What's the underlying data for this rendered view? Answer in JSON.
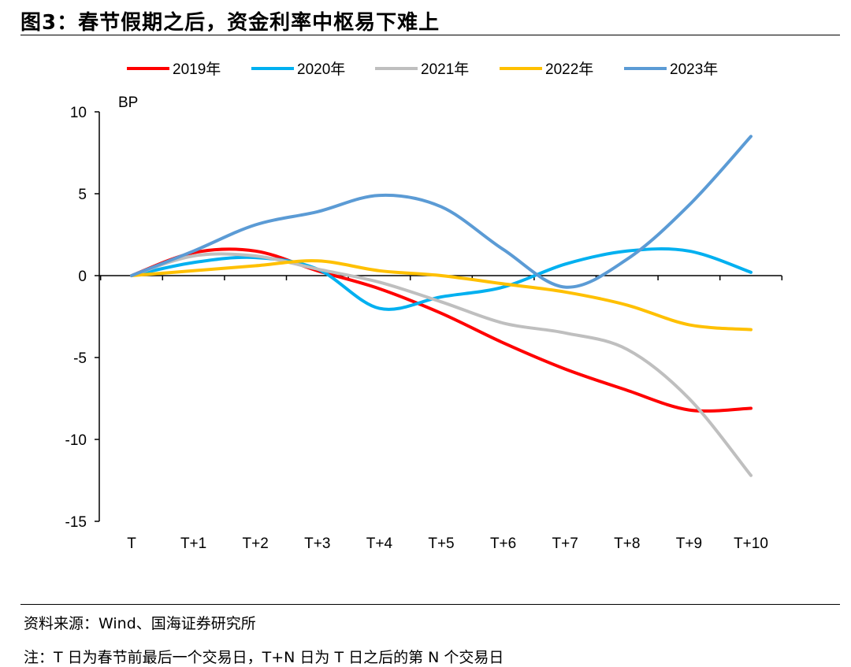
{
  "figure": {
    "title": "图3：春节假期之后，资金利率中枢易下难上",
    "source": "资料来源：Wind、国海证券研究所",
    "note": "注：T 日为春节前最后一个交易日，T+N 日为 T 日之后的第 N 个交易日"
  },
  "chart_data": {
    "type": "line",
    "ylabel": "BP",
    "ylim": [
      -15,
      10
    ],
    "yticks": [
      10,
      5,
      0,
      -5,
      -10,
      -15
    ],
    "categories": [
      "T",
      "T+1",
      "T+2",
      "T+3",
      "T+4",
      "T+5",
      "T+6",
      "T+7",
      "T+8",
      "T+9",
      "T+10"
    ],
    "legend_position": "top",
    "grid": false,
    "series": [
      {
        "name": "2019年",
        "color": "#ff0000",
        "values": [
          0,
          1.4,
          1.5,
          0.3,
          -0.8,
          -2.3,
          -4.1,
          -5.7,
          -7.0,
          -8.2,
          -8.1
        ]
      },
      {
        "name": "2020年",
        "color": "#00b0f0",
        "values": [
          0,
          0.8,
          1.1,
          0.4,
          -2.0,
          -1.3,
          -0.7,
          0.7,
          1.5,
          1.5,
          0.2
        ]
      },
      {
        "name": "2021年",
        "color": "#bfbfbf",
        "values": [
          0,
          1.2,
          1.2,
          0.4,
          -0.4,
          -1.6,
          -2.9,
          -3.5,
          -4.5,
          -7.5,
          -12.2
        ]
      },
      {
        "name": "2022年",
        "color": "#ffc000",
        "values": [
          0,
          0.3,
          0.6,
          0.9,
          0.3,
          0.0,
          -0.5,
          -1.0,
          -1.8,
          -3.0,
          -3.3
        ]
      },
      {
        "name": "2023年",
        "color": "#5b9bd5",
        "values": [
          0,
          1.5,
          3.1,
          3.9,
          4.9,
          4.2,
          1.6,
          -0.7,
          1.0,
          4.3,
          8.5
        ]
      }
    ]
  }
}
